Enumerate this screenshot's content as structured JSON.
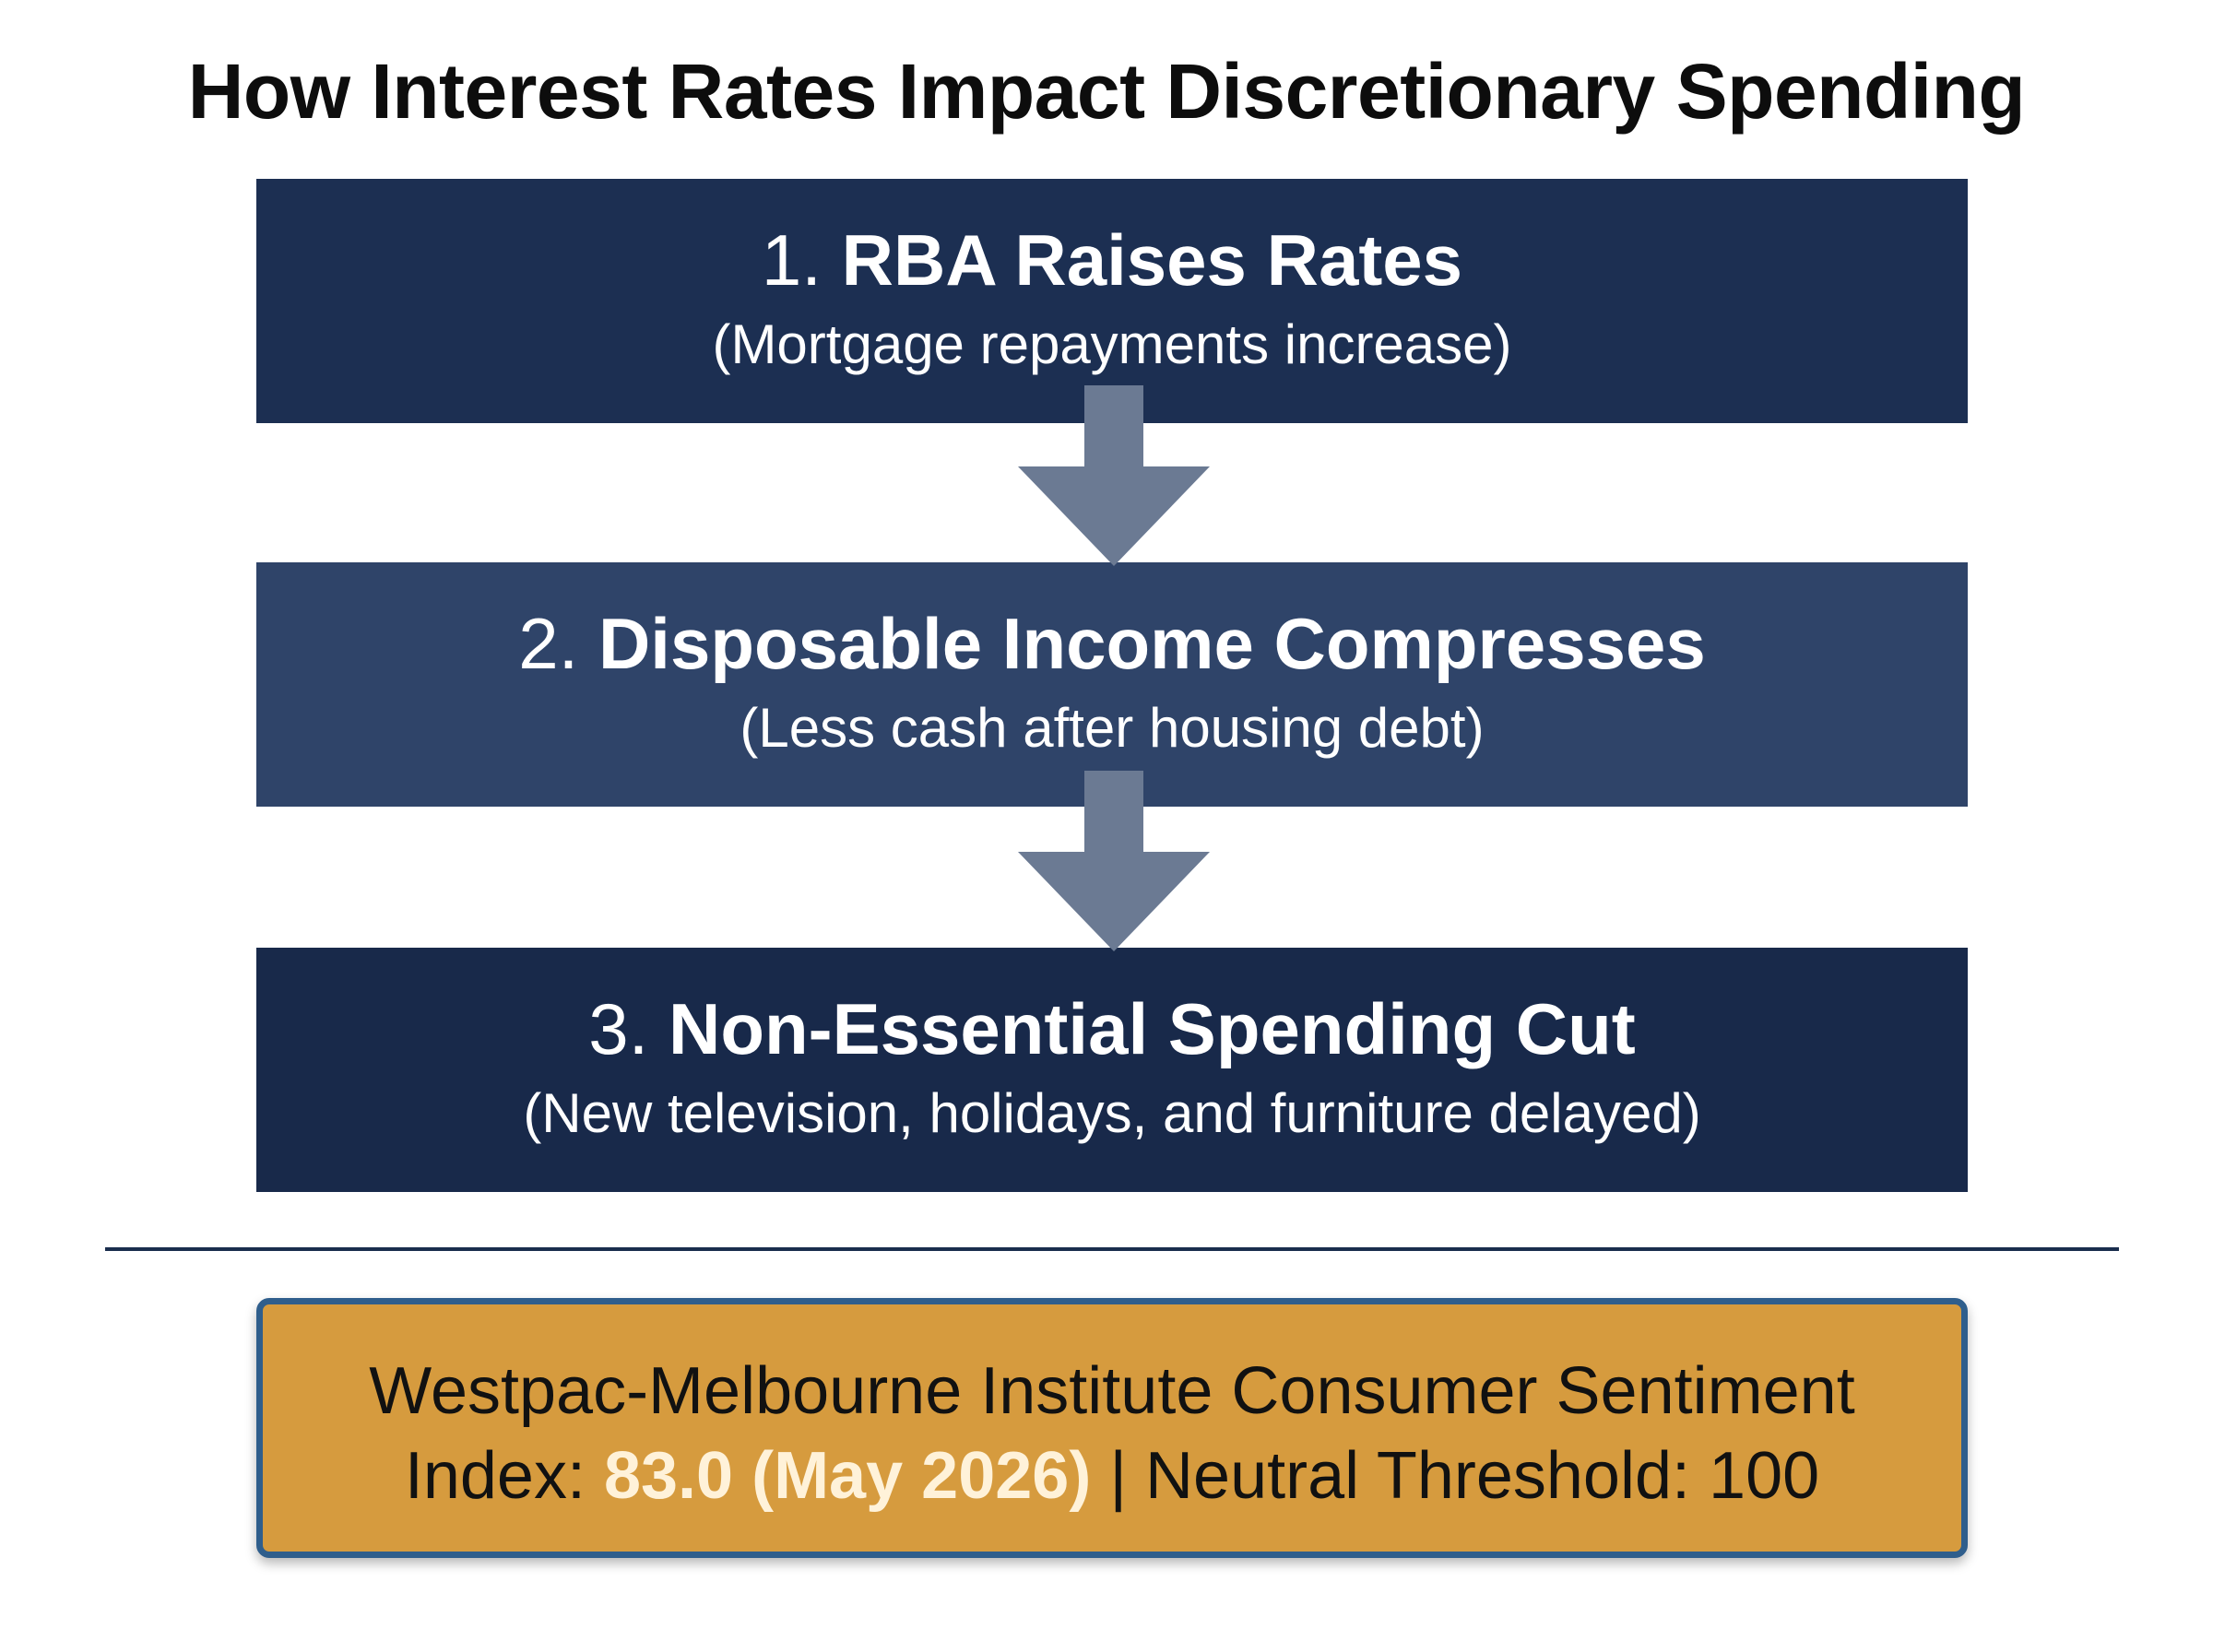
{
  "title": "How Interest Rates Impact Discretionary Spending",
  "steps": [
    {
      "number": "1.",
      "name": "RBA Raises Rates",
      "detail": "(Mortgage repayments increase)"
    },
    {
      "number": "2.",
      "name": "Disposable Income Compresses",
      "detail": "(Less cash after housing debt)"
    },
    {
      "number": "3.",
      "name": "Non-Essential Spending Cut",
      "detail": "(New television, holidays, and furniture delayed)"
    }
  ],
  "info": {
    "line1": "Westpac-Melbourne Institute Consumer Sentiment",
    "index_label": "Index:",
    "index_value": "83.0 (May 2026)",
    "separator": "|",
    "threshold_label": "Neutral Threshold:",
    "threshold_value": "100"
  },
  "colors": {
    "step_1": "#1c2f52",
    "step_2": "#2f4469",
    "step_3": "#18294a",
    "arrow": "#6b7a93",
    "info_box": "#d69b3e",
    "info_border": "#2f5e8c",
    "highlight": "#fff2d9"
  },
  "icons": {
    "arrow": "arrow-down-icon"
  }
}
